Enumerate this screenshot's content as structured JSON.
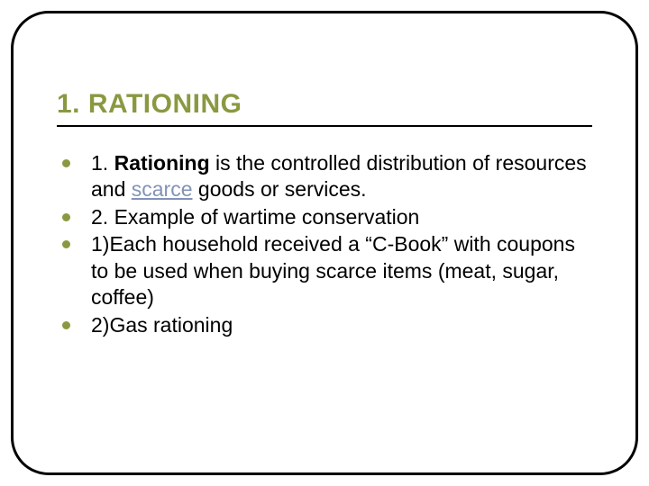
{
  "slide": {
    "title": "1. RATIONING",
    "title_color": "#8a9941",
    "bullet_color": "#8a9941",
    "link_color": "#8293b8",
    "frame_border_color": "#000000",
    "background_color": "#ffffff",
    "title_fontsize": 30,
    "body_fontsize": 23,
    "bullets": [
      {
        "prefix": "1. ",
        "bold": "Rationing",
        "mid": " is the controlled distribution of resources and ",
        "link": "scarce",
        "tail": " goods or services."
      },
      {
        "text": "2. Example of wartime conservation"
      },
      {
        "text": "1)Each household received a “C-Book” with coupons to be used when buying scarce items (meat, sugar, coffee)"
      },
      {
        "text": "2)Gas rationing"
      }
    ]
  }
}
